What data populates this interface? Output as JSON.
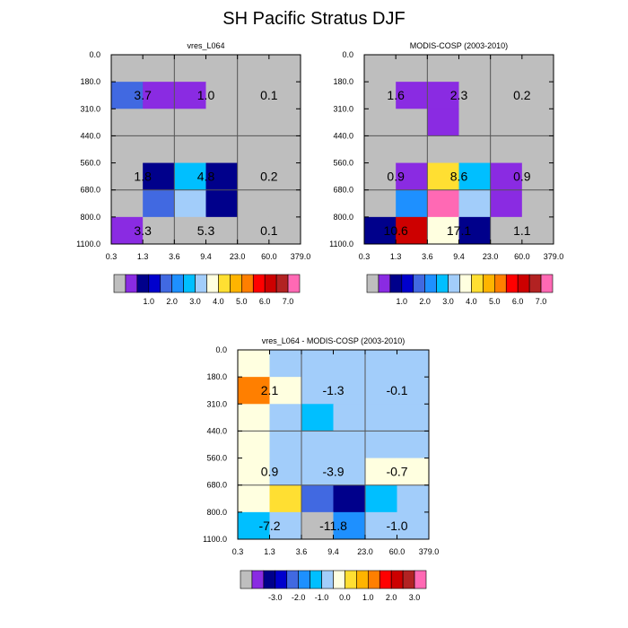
{
  "title": "SH Pacific Stratus DJF",
  "colors": {
    "palette": [
      "#bebebe",
      "#8a2be2",
      "#00008b",
      "#0000cd",
      "#4169e1",
      "#1e90ff",
      "#00bfff",
      "#a2cdfa",
      "#ffffe0",
      "#ffdf32",
      "#ffb400",
      "#ff7f00",
      "#ff0000",
      "#cd0000",
      "#b22222",
      "#ff69b4"
    ],
    "tau_bins_top": "#bebebe",
    "grid_line": "#555555"
  },
  "chart_data": [
    {
      "type": "heatmap",
      "panel": "vres",
      "title": "vres_L064",
      "x_ticks": [
        "0.3",
        "1.3",
        "3.6",
        "9.4",
        "23.0",
        "60.0",
        "379.0"
      ],
      "y_ticks": [
        "0.0",
        "180.0",
        "310.0",
        "440.0",
        "560.0",
        "680.0",
        "800.0",
        "1100.0"
      ],
      "cells": [
        [
          0,
          0,
          0,
          0,
          0,
          0
        ],
        [
          4,
          1,
          1,
          0,
          0,
          0
        ],
        [
          0,
          0,
          0,
          0,
          0,
          0
        ],
        [
          0,
          0,
          0,
          0,
          0,
          0
        ],
        [
          0,
          2,
          6,
          2,
          0,
          0
        ],
        [
          0,
          4,
          7,
          2,
          0,
          0
        ],
        [
          1,
          0,
          0,
          0,
          0,
          0
        ]
      ],
      "labels": [
        {
          "row": 1,
          "col": 1,
          "text": "3.7"
        },
        {
          "row": 1,
          "col": 3,
          "text": "1.0"
        },
        {
          "row": 1,
          "col": 5,
          "text": "0.1"
        },
        {
          "row": 4,
          "col": 1,
          "text": "1.8"
        },
        {
          "row": 4,
          "col": 3,
          "text": "4.8"
        },
        {
          "row": 4,
          "col": 5,
          "text": "0.2"
        },
        {
          "row": 6,
          "col": 1,
          "text": "3.3"
        },
        {
          "row": 6,
          "col": 3,
          "text": "5.3"
        },
        {
          "row": 6,
          "col": 5,
          "text": "0.1"
        }
      ],
      "colorbar_labels": [
        "1.0",
        "2.0",
        "3.0",
        "4.0",
        "5.0",
        "6.0",
        "7.0"
      ]
    },
    {
      "type": "heatmap",
      "panel": "modis",
      "title": "MODIS-COSP (2003-2010)",
      "x_ticks": [
        "0.3",
        "1.3",
        "3.6",
        "9.4",
        "23.0",
        "60.0",
        "379.0"
      ],
      "y_ticks": [
        "0.0",
        "180.0",
        "310.0",
        "440.0",
        "560.0",
        "680.0",
        "800.0",
        "1100.0"
      ],
      "cells": [
        [
          0,
          0,
          0,
          0,
          0,
          0
        ],
        [
          0,
          1,
          1,
          0,
          0,
          0
        ],
        [
          0,
          0,
          1,
          0,
          0,
          0
        ],
        [
          0,
          0,
          0,
          0,
          0,
          0
        ],
        [
          0,
          1,
          9,
          6,
          1,
          0
        ],
        [
          0,
          5,
          15,
          7,
          1,
          0
        ],
        [
          2,
          13,
          8,
          2,
          0,
          0
        ]
      ],
      "labels": [
        {
          "row": 1,
          "col": 1,
          "text": "1.6"
        },
        {
          "row": 1,
          "col": 3,
          "text": "2.3"
        },
        {
          "row": 1,
          "col": 5,
          "text": "0.2"
        },
        {
          "row": 4,
          "col": 1,
          "text": "0.9"
        },
        {
          "row": 4,
          "col": 3,
          "text": "8.6"
        },
        {
          "row": 4,
          "col": 5,
          "text": "0.9"
        },
        {
          "row": 6,
          "col": 1,
          "text": "10.6"
        },
        {
          "row": 6,
          "col": 3,
          "text": "17.1"
        },
        {
          "row": 6,
          "col": 5,
          "text": "1.1"
        }
      ],
      "colorbar_labels": [
        "1.0",
        "2.0",
        "3.0",
        "4.0",
        "5.0",
        "6.0",
        "7.0"
      ]
    },
    {
      "type": "heatmap",
      "panel": "diff",
      "title": "vres_L064 - MODIS-COSP (2003-2010)",
      "x_ticks": [
        "0.3",
        "1.3",
        "3.6",
        "9.4",
        "23.0",
        "60.0",
        "379.0"
      ],
      "y_ticks": [
        "0.0",
        "180.0",
        "310.0",
        "440.0",
        "560.0",
        "680.0",
        "800.0",
        "1100.0"
      ],
      "cells": [
        [
          8,
          7,
          7,
          7,
          7,
          7
        ],
        [
          11,
          8,
          7,
          7,
          7,
          7
        ],
        [
          8,
          7,
          6,
          7,
          7,
          7
        ],
        [
          8,
          7,
          7,
          7,
          7,
          7
        ],
        [
          8,
          7,
          7,
          7,
          8,
          8
        ],
        [
          8,
          9,
          4,
          4,
          6,
          7
        ],
        [
          6,
          7,
          0,
          2,
          5,
          7
        ]
      ],
      "overrides": [
        {
          "row": 5,
          "col": 2,
          "color": 4
        },
        {
          "row": 5,
          "col": 3,
          "color": 2
        },
        {
          "row": 6,
          "col": 2,
          "color": 0
        },
        {
          "row": 6,
          "col": 3,
          "color": 5
        },
        {
          "row": 6,
          "col": 4,
          "color": 7
        }
      ],
      "labels": [
        {
          "row": 1,
          "col": 1,
          "text": "2.1"
        },
        {
          "row": 1,
          "col": 3,
          "text": "-1.3"
        },
        {
          "row": 1,
          "col": 5,
          "text": "-0.1"
        },
        {
          "row": 4,
          "col": 1,
          "text": "0.9"
        },
        {
          "row": 4,
          "col": 3,
          "text": "-3.9"
        },
        {
          "row": 4,
          "col": 5,
          "text": "-0.7"
        },
        {
          "row": 6,
          "col": 1,
          "text": "-7.2"
        },
        {
          "row": 6,
          "col": 3,
          "text": "-11.8"
        },
        {
          "row": 6,
          "col": 5,
          "text": "-1.0"
        }
      ],
      "colorbar_labels": [
        "-3.0",
        "-2.0",
        "-1.0",
        "0.0",
        "1.0",
        "2.0",
        "3.0"
      ]
    }
  ]
}
